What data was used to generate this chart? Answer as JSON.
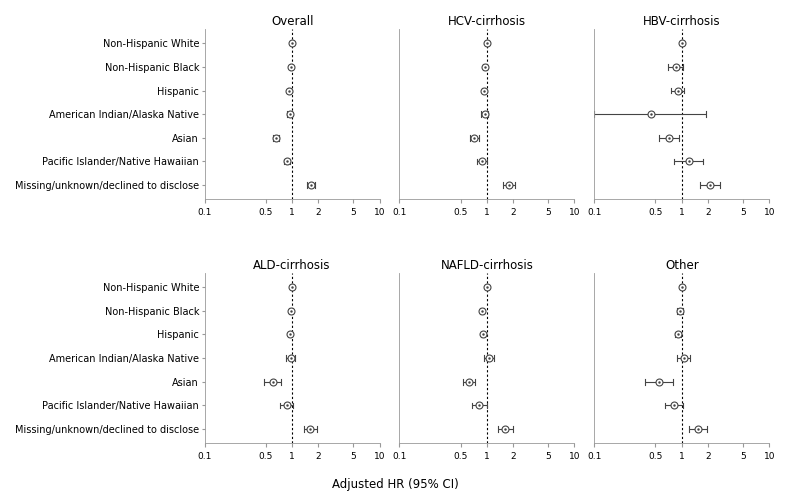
{
  "panels": [
    "Overall",
    "HCV-cirrhosis",
    "HBV-cirrhosis",
    "ALD-cirrhosis",
    "NAFLD-cirrhosis",
    "Other"
  ],
  "groups": [
    "Non-Hispanic White",
    "Non-Hispanic Black",
    "Hispanic",
    "American Indian/Alaska Native",
    "Asian",
    "Pacific Islander/Native Hawaiian",
    "Missing/unknown/declined to disclose"
  ],
  "data": {
    "Overall": {
      "hr": [
        1.0,
        0.97,
        0.93,
        0.94,
        0.65,
        0.87,
        1.65
      ],
      "lo": [
        1.0,
        0.94,
        0.9,
        0.88,
        0.6,
        0.8,
        1.48
      ],
      "hi": [
        1.0,
        1.0,
        0.96,
        1.0,
        0.71,
        0.95,
        1.84
      ]
    },
    "HCV-cirrhosis": {
      "hr": [
        1.0,
        0.95,
        0.92,
        0.94,
        0.72,
        0.87,
        1.8
      ],
      "lo": [
        1.0,
        0.91,
        0.88,
        0.86,
        0.64,
        0.76,
        1.54
      ],
      "hi": [
        1.0,
        0.99,
        0.96,
        1.02,
        0.81,
        1.0,
        2.1
      ]
    },
    "HBV-cirrhosis": {
      "hr": [
        1.0,
        0.85,
        0.9,
        0.45,
        0.72,
        1.2,
        2.1
      ],
      "lo": [
        1.0,
        0.7,
        0.76,
        0.1,
        0.55,
        0.82,
        1.6
      ],
      "hi": [
        1.0,
        1.03,
        1.07,
        1.9,
        0.93,
        1.75,
        2.75
      ]
    },
    "ALD-cirrhosis": {
      "hr": [
        1.0,
        0.96,
        0.94,
        0.96,
        0.6,
        0.87,
        1.62
      ],
      "lo": [
        1.0,
        0.91,
        0.89,
        0.86,
        0.48,
        0.73,
        1.38
      ],
      "hi": [
        1.0,
        1.01,
        0.99,
        1.07,
        0.74,
        1.03,
        1.9
      ]
    },
    "NAFLD-cirrhosis": {
      "hr": [
        1.0,
        0.88,
        0.9,
        1.05,
        0.62,
        0.82,
        1.62
      ],
      "lo": [
        1.0,
        0.83,
        0.85,
        0.92,
        0.53,
        0.68,
        1.32
      ],
      "hi": [
        1.0,
        0.93,
        0.95,
        1.2,
        0.73,
        0.99,
        1.99
      ]
    },
    "Other": {
      "hr": [
        1.0,
        0.95,
        0.9,
        1.05,
        0.55,
        0.82,
        1.52
      ],
      "lo": [
        1.0,
        0.88,
        0.83,
        0.89,
        0.38,
        0.65,
        1.2
      ],
      "hi": [
        1.0,
        1.03,
        0.98,
        1.24,
        0.79,
        1.03,
        1.93
      ]
    }
  },
  "ref_group": 0,
  "xlabel": "Adjusted HR (95% CI)",
  "xlim": [
    0.1,
    10
  ],
  "xticks": [
    0.1,
    0.5,
    1,
    2,
    5,
    10
  ],
  "xticklabels": [
    "0.1",
    "0.5",
    "1",
    "2",
    "5",
    "10"
  ],
  "vline_x": 1.0,
  "point_color": "white",
  "point_edgecolor": "#444444",
  "line_color": "#444444",
  "bg_color": "white",
  "title_fontsize": 8.5,
  "label_fontsize": 7,
  "tick_fontsize": 6.5,
  "marker_size": 5,
  "ref_marker_size": 3
}
